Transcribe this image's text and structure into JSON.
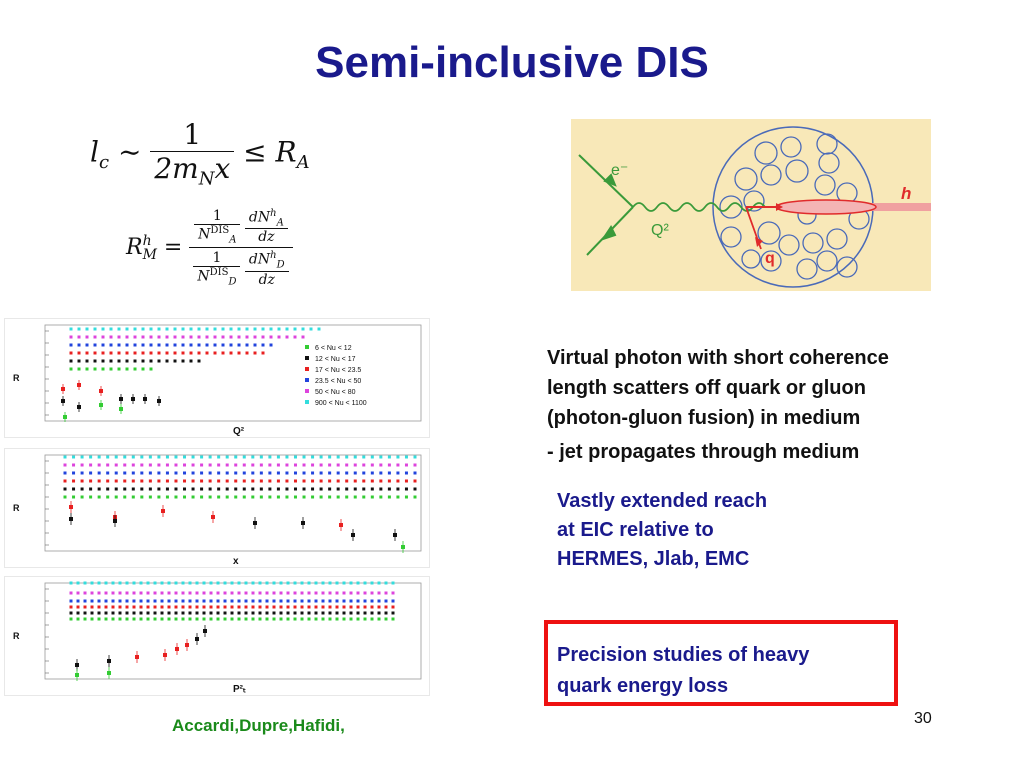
{
  "slide": {
    "title": "Semi-inclusive DIS",
    "page_number": "30",
    "citation": "Accardi,Dupre,Hafidi,"
  },
  "equations": {
    "lc_lhs": "l",
    "lc_sub": "c",
    "lc_sim": "∼",
    "lc_num": "1",
    "lc_den": "2m",
    "lc_den_sub": "N",
    "lc_den_x": "x",
    "lc_rhs": "≤ R",
    "lc_rhs_sub": "A",
    "rm_lhs": "R",
    "rm_sup": "h",
    "rm_sub": "M",
    "rm_eq": "=",
    "rm_one": "1",
    "rm_n": "N",
    "rm_dis": "DIS",
    "rm_a": "A",
    "rm_d": "D",
    "rm_dn": "dN",
    "rm_h": "h",
    "rm_dz": "dz"
  },
  "diagram": {
    "electron_label": "e⁻",
    "photon_label": "Q²",
    "hadron_label": "h",
    "quark_label": "q",
    "colors": {
      "background": "#f8e8b8",
      "nucleus": "#4a6ab8",
      "electron": "#3a9a3a",
      "hadron": "#e02b2b"
    }
  },
  "text": {
    "line1": "Virtual photon with short coherence",
    "line2": "length scatters off quark or gluon",
    "line3": "(photon-gluon fusion) in medium",
    "line4": "- jet propagates through medium",
    "reach1": "Vastly extended reach",
    "reach2": "at EIC relative to",
    "reach3": "HERMES, Jlab, EMC",
    "precision1": "Precision studies of heavy",
    "precision2": "quark energy loss"
  },
  "plots": {
    "y_axis_label": "R",
    "x_labels": [
      "Q²",
      "x",
      "P²ₜ"
    ],
    "legend": [
      "6 < Nu < 12",
      "12 < Nu < 17",
      "17 < Nu < 23.5",
      "23.5 < Nu < 50",
      "50 < Nu < 80",
      "900 < Nu < 1100"
    ],
    "series_colors": [
      "#33cc33",
      "#111111",
      "#e82020",
      "#2244dd",
      "#dd44dd",
      "#33dddd"
    ]
  }
}
